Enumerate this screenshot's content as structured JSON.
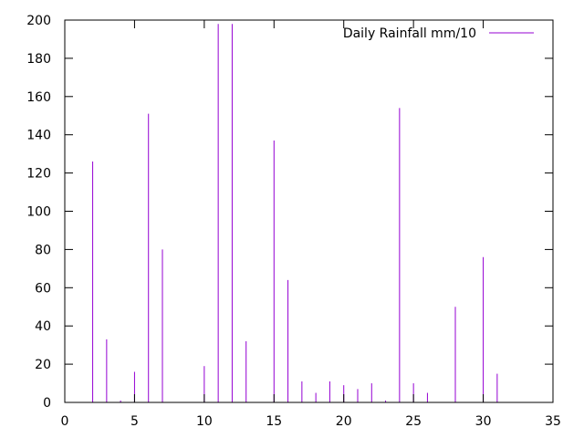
{
  "chart_data": {
    "type": "bar",
    "bar_style": "impulses",
    "title": "",
    "xlabel": "",
    "ylabel": "",
    "xlim": [
      0,
      35
    ],
    "ylim": [
      0,
      200
    ],
    "x_ticks": [
      0,
      5,
      10,
      15,
      20,
      25,
      30,
      35
    ],
    "y_ticks": [
      0,
      20,
      40,
      60,
      80,
      100,
      120,
      140,
      160,
      180,
      200
    ],
    "grid": false,
    "legend": {
      "position": "top-right"
    },
    "series": [
      {
        "name": "Daily Rainfall mm/10",
        "color": "#9400d3",
        "x": [
          2,
          3,
          4,
          5,
          6,
          7,
          10,
          11,
          12,
          13,
          15,
          16,
          17,
          18,
          19,
          20,
          21,
          22,
          23,
          24,
          25,
          26,
          28,
          30,
          31
        ],
        "values": [
          126,
          33,
          1,
          16,
          151,
          80,
          19,
          198,
          198,
          32,
          137,
          64,
          11,
          5,
          11,
          9,
          7,
          10,
          1,
          154,
          10,
          5,
          50,
          76,
          15
        ]
      }
    ]
  }
}
